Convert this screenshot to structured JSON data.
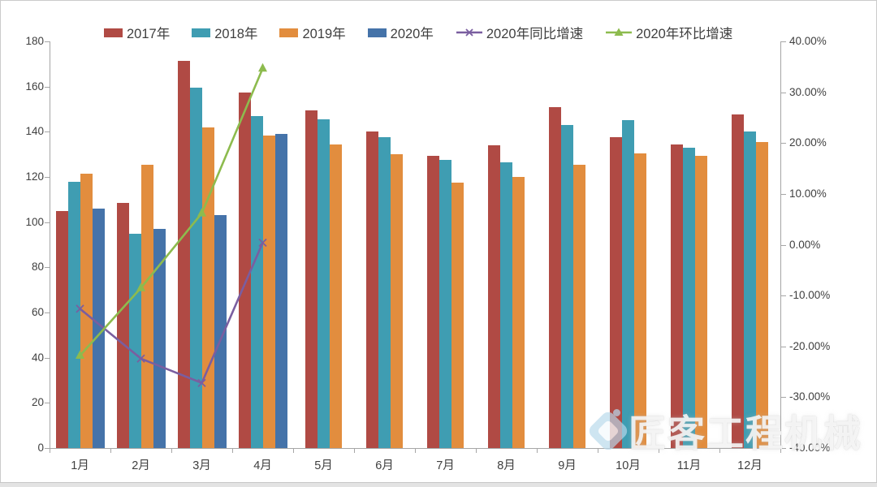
{
  "watermark": {
    "text": "匠客工程机械"
  },
  "colors": {
    "bar_2017": "#b04a44",
    "bar_2018": "#3f9db2",
    "bar_2019": "#e28d3e",
    "bar_2020": "#4573a9",
    "line_yoy": "#7a5ea0",
    "line_mom": "#8dbb4e",
    "axis": "#a6a6a6",
    "text": "#404040"
  },
  "chart_data": {
    "type": "bar",
    "subtype": "grouped bars with two percentage line series (combo chart)",
    "title": "",
    "xlabel": "",
    "ylabel_left": "",
    "ylabel_right": "",
    "grid": false,
    "legend_position": "top",
    "categories": [
      "1月",
      "2月",
      "3月",
      "4月",
      "5月",
      "6月",
      "7月",
      "8月",
      "9月",
      "10月",
      "11月",
      "12月"
    ],
    "left_axis": {
      "min": 0,
      "max": 180,
      "step": 20,
      "ticks": [
        "180",
        "160",
        "140",
        "120",
        "100",
        "80",
        "60",
        "40",
        "20",
        "0"
      ]
    },
    "right_axis": {
      "min": -40,
      "max": 40,
      "step": 10,
      "ticks": [
        "40.00%",
        "30.00%",
        "20.00%",
        "10.00%",
        "0.00%",
        "-10.00%",
        "-20.00%",
        "-30.00%",
        "-40.00%"
      ]
    },
    "bar_series": [
      {
        "name": "2017年",
        "color_key": "bar_2017",
        "values": [
          105,
          108.5,
          171.5,
          157.5,
          149.5,
          140,
          129.5,
          134,
          151,
          137.5,
          134.5,
          147.5
        ]
      },
      {
        "name": "2018年",
        "color_key": "bar_2018",
        "values": [
          118,
          95,
          159.5,
          147,
          145.5,
          137.5,
          127.5,
          126.5,
          143,
          145,
          133,
          140
        ]
      },
      {
        "name": "2019年",
        "color_key": "bar_2019",
        "values": [
          121.5,
          125.5,
          142,
          138.5,
          134.5,
          130,
          117.5,
          120,
          125.5,
          130.5,
          129.5,
          135.5
        ]
      },
      {
        "name": "2020年",
        "color_key": "bar_2020",
        "values": [
          106,
          97,
          103,
          139,
          null,
          null,
          null,
          null,
          null,
          null,
          null,
          null
        ]
      }
    ],
    "line_series": [
      {
        "name": "2020年同比增速",
        "color_key": "line_yoy",
        "marker": "x",
        "axis": "right",
        "values_pct": [
          -12.6,
          -22.4,
          -27.2,
          0.4,
          null,
          null,
          null,
          null,
          null,
          null,
          null,
          null
        ]
      },
      {
        "name": "2020年环比增速",
        "color_key": "line_mom",
        "marker": "triangle",
        "axis": "right",
        "values_pct": [
          -21.8,
          -8.5,
          6.2,
          34.7,
          null,
          null,
          null,
          null,
          null,
          null,
          null,
          null
        ]
      }
    ]
  }
}
